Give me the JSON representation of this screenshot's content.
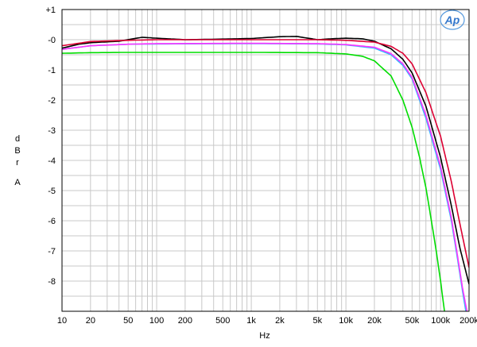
{
  "chart_data": {
    "type": "line",
    "xscale": "log",
    "xlim": [
      10,
      200000
    ],
    "ylim": [
      -9,
      1
    ],
    "xlabel": "Hz",
    "ylabel_chars": [
      "d",
      "B",
      "r",
      "A"
    ],
    "grid": true,
    "logo_text": "Ap",
    "x_ticks": [
      {
        "v": 10,
        "label": "10"
      },
      {
        "v": 20,
        "label": "20"
      },
      {
        "v": 50,
        "label": "50"
      },
      {
        "v": 100,
        "label": "100"
      },
      {
        "v": 200,
        "label": "200"
      },
      {
        "v": 500,
        "label": "500"
      },
      {
        "v": 1000,
        "label": "1k"
      },
      {
        "v": 2000,
        "label": "2k"
      },
      {
        "v": 5000,
        "label": "5k"
      },
      {
        "v": 10000,
        "label": "10k"
      },
      {
        "v": 20000,
        "label": "20k"
      },
      {
        "v": 50000,
        "label": "50k"
      },
      {
        "v": 100000,
        "label": "100k"
      },
      {
        "v": 200000,
        "label": "200k"
      }
    ],
    "y_ticks": [
      {
        "v": 1,
        "label": "+1"
      },
      {
        "v": 0,
        "label": "-0"
      },
      {
        "v": -1,
        "label": "-1"
      },
      {
        "v": -2,
        "label": "-2"
      },
      {
        "v": -3,
        "label": "-3"
      },
      {
        "v": -4,
        "label": "-4"
      },
      {
        "v": -5,
        "label": "-5"
      },
      {
        "v": -6,
        "label": "-6"
      },
      {
        "v": -7,
        "label": "-7"
      },
      {
        "v": -8,
        "label": "-8"
      }
    ],
    "series": [
      {
        "color": "#00dd00",
        "points": [
          [
            10,
            -0.45
          ],
          [
            20,
            -0.43
          ],
          [
            50,
            -0.42
          ],
          [
            100,
            -0.42
          ],
          [
            1000,
            -0.42
          ],
          [
            5000,
            -0.43
          ],
          [
            10000,
            -0.47
          ],
          [
            15000,
            -0.55
          ],
          [
            20000,
            -0.7
          ],
          [
            30000,
            -1.2
          ],
          [
            40000,
            -2.0
          ],
          [
            50000,
            -2.9
          ],
          [
            60000,
            -3.9
          ],
          [
            70000,
            -4.9
          ],
          [
            80000,
            -6.0
          ],
          [
            90000,
            -7.0
          ],
          [
            100000,
            -8.0
          ],
          [
            110000,
            -9.0
          ]
        ]
      },
      {
        "color": "#33bbff",
        "points": [
          [
            10,
            -0.32
          ],
          [
            20,
            -0.2
          ],
          [
            50,
            -0.15
          ],
          [
            100,
            -0.14
          ],
          [
            1000,
            -0.13
          ],
          [
            5000,
            -0.14
          ],
          [
            10000,
            -0.17
          ],
          [
            20000,
            -0.28
          ],
          [
            30000,
            -0.5
          ],
          [
            40000,
            -0.85
          ],
          [
            50000,
            -1.3
          ],
          [
            70000,
            -2.6
          ],
          [
            100000,
            -4.3
          ],
          [
            130000,
            -6.0
          ],
          [
            150000,
            -7.2
          ],
          [
            170000,
            -8.3
          ],
          [
            185000,
            -9.0
          ]
        ]
      },
      {
        "color": "#ff33ff",
        "points": [
          [
            10,
            -0.32
          ],
          [
            20,
            -0.2
          ],
          [
            50,
            -0.15
          ],
          [
            100,
            -0.13
          ],
          [
            1000,
            -0.12
          ],
          [
            5000,
            -0.13
          ],
          [
            10000,
            -0.16
          ],
          [
            20000,
            -0.25
          ],
          [
            30000,
            -0.46
          ],
          [
            40000,
            -0.8
          ],
          [
            50000,
            -1.25
          ],
          [
            70000,
            -2.5
          ],
          [
            100000,
            -4.2
          ],
          [
            130000,
            -5.9
          ],
          [
            150000,
            -7.1
          ],
          [
            170000,
            -8.2
          ],
          [
            190000,
            -9.0
          ]
        ]
      },
      {
        "color": "#000000",
        "points": [
          [
            10,
            -0.28
          ],
          [
            15,
            -0.15
          ],
          [
            20,
            -0.1
          ],
          [
            40,
            -0.05
          ],
          [
            70,
            0.08
          ],
          [
            100,
            0.05
          ],
          [
            200,
            0.0
          ],
          [
            500,
            0.02
          ],
          [
            1000,
            0.04
          ],
          [
            2000,
            0.1
          ],
          [
            3000,
            0.11
          ],
          [
            5000,
            0.0
          ],
          [
            7000,
            0.03
          ],
          [
            10000,
            0.05
          ],
          [
            15000,
            0.03
          ],
          [
            20000,
            -0.05
          ],
          [
            30000,
            -0.3
          ],
          [
            40000,
            -0.65
          ],
          [
            50000,
            -1.1
          ],
          [
            70000,
            -2.2
          ],
          [
            100000,
            -3.9
          ],
          [
            130000,
            -5.5
          ],
          [
            160000,
            -6.9
          ],
          [
            200000,
            -8.1
          ]
        ]
      },
      {
        "color": "#dd0033",
        "points": [
          [
            10,
            -0.2
          ],
          [
            20,
            -0.06
          ],
          [
            50,
            -0.02
          ],
          [
            100,
            0.0
          ],
          [
            1000,
            0.0
          ],
          [
            5000,
            0.0
          ],
          [
            10000,
            -0.02
          ],
          [
            20000,
            -0.08
          ],
          [
            30000,
            -0.22
          ],
          [
            40000,
            -0.45
          ],
          [
            50000,
            -0.8
          ],
          [
            70000,
            -1.75
          ],
          [
            100000,
            -3.2
          ],
          [
            130000,
            -4.7
          ],
          [
            160000,
            -6.1
          ],
          [
            200000,
            -7.55
          ]
        ]
      }
    ]
  }
}
